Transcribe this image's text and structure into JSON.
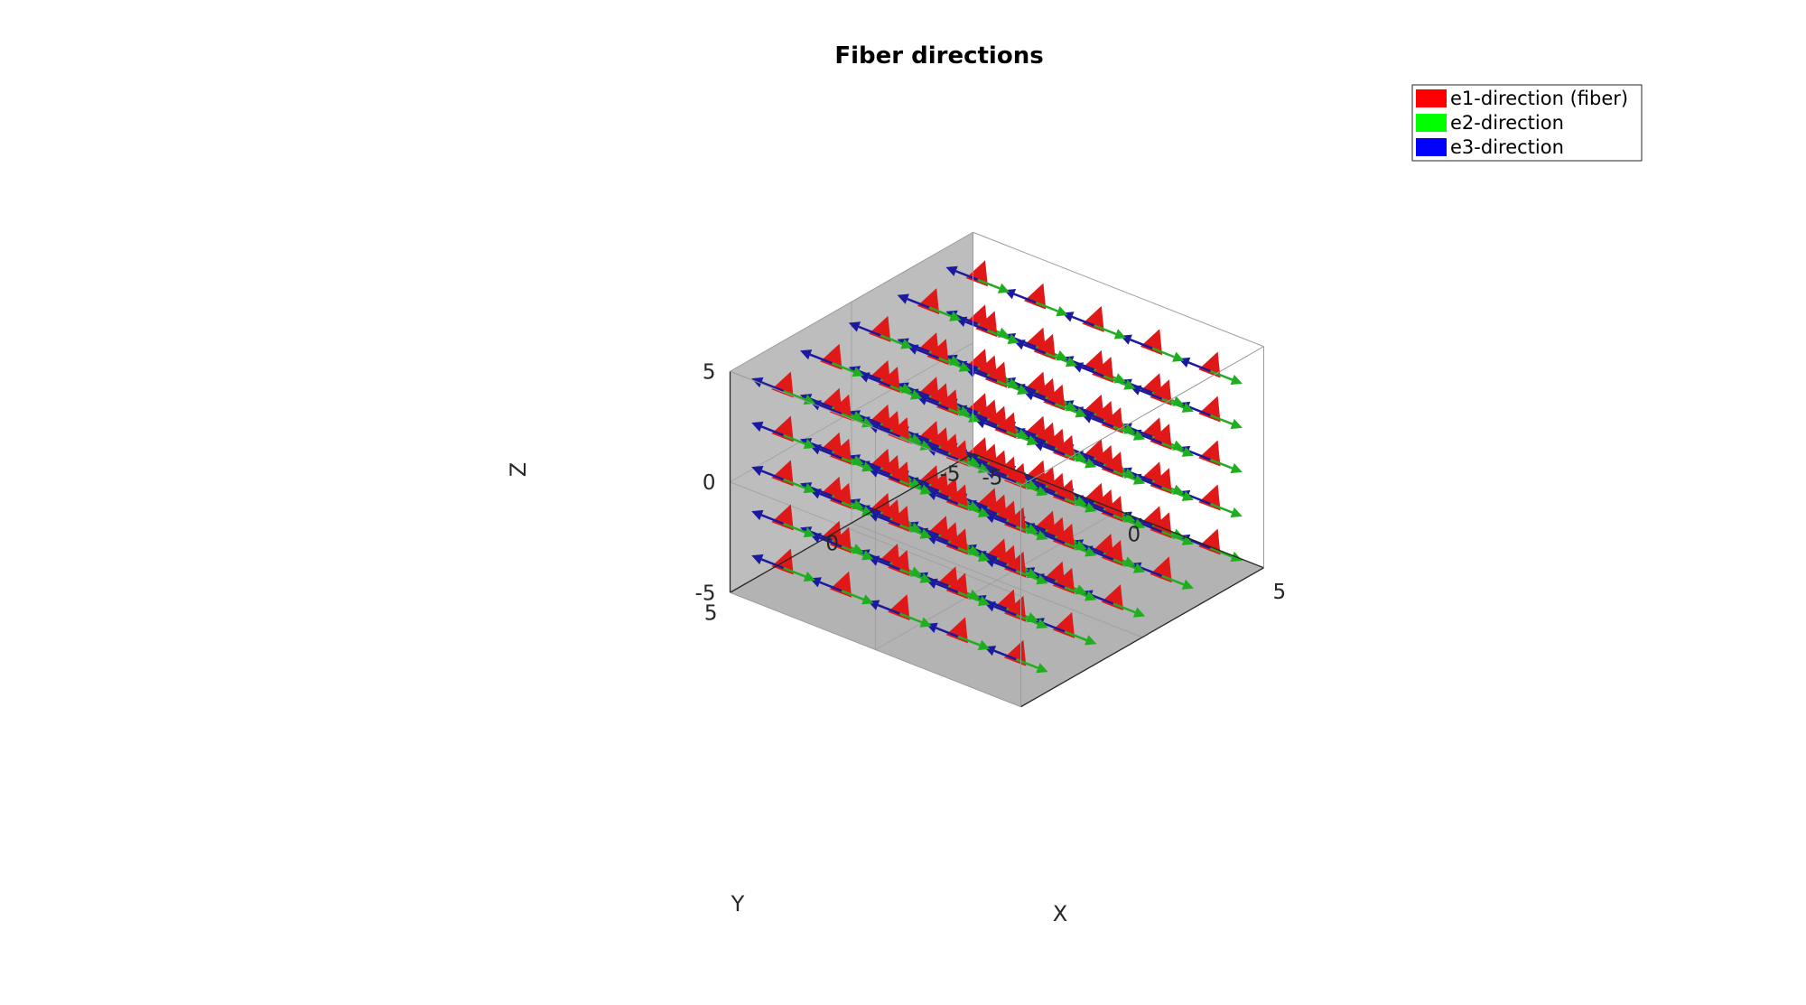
{
  "chart_data": {
    "type": "quiver3d",
    "title": "Fiber directions",
    "xlabel": "X",
    "ylabel": "Y",
    "zlabel": "Z",
    "xlim": [
      -5,
      5
    ],
    "ylim": [
      -5,
      5
    ],
    "zlim": [
      -5,
      5
    ],
    "xticks": [
      "-5",
      "0",
      "5"
    ],
    "yticks": [
      "-5",
      "0",
      "5"
    ],
    "zticks": [
      "-5",
      "0",
      "5"
    ],
    "grid": true,
    "view": {
      "azimuth": -37.5,
      "elevation": 30
    },
    "grid_points": {
      "x": [
        -4,
        -2,
        0,
        2,
        4
      ],
      "y": [
        -4,
        -2,
        0,
        2,
        4
      ],
      "z": [
        -4,
        -2,
        0,
        2,
        4
      ]
    },
    "series": [
      {
        "name": "e1-direction (fiber)",
        "color": "#ff0000",
        "direction": [
          0.8,
          0.6,
          1
        ]
      },
      {
        "name": "e2-direction",
        "color": "#00ff00",
        "direction": [
          1,
          0,
          0
        ]
      },
      {
        "name": "e3-direction",
        "color": "#0000ff",
        "direction": [
          -1,
          0,
          0
        ]
      }
    ],
    "legend_position": "top-right"
  }
}
